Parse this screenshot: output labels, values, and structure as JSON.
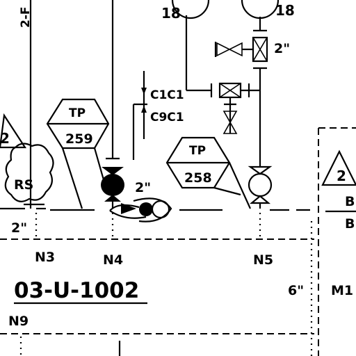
{
  "labels": {
    "line_top": "2-F",
    "size_18_left": "18",
    "size_18_right": "18",
    "size_2in_top_right": "2\"",
    "c1c1": "C1C1",
    "c9c1": "C9C1",
    "size_2in_mid": "2\"",
    "size_2in_left": "2\"",
    "size_6in": "6\"",
    "line_number": "03-U-1002",
    "m1": "M1",
    "b_upper": "B",
    "b_lower": "B"
  },
  "tags": {
    "tp_259": {
      "top": "TP",
      "bottom": "259"
    },
    "tp_258": {
      "top": "TP",
      "bottom": "258"
    },
    "rs": "RS",
    "rev_left": "2",
    "rev_right": "2"
  },
  "nodes": [
    "N3",
    "N4",
    "N5",
    "N9"
  ]
}
